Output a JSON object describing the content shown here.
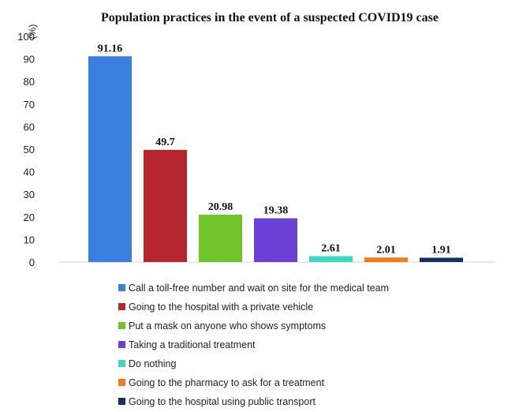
{
  "chart_data": {
    "type": "bar",
    "title": "Population practices in the event of a suspected COVID19 case",
    "ylabel": "(%)",
    "xlabel": "",
    "ylim": [
      0,
      100
    ],
    "yticks": [
      "0",
      "10",
      "20",
      "30",
      "40",
      "50",
      "60",
      "70",
      "80",
      "90",
      "100"
    ],
    "grid": false,
    "legend_position": "bottom",
    "categories": [
      "Call a toll-free number and wait on site for the medical team",
      "Going to the hospital with a private vehicle",
      "Put a mask on anyone who shows symptoms",
      "Taking a traditional treatment",
      "Do nothing",
      "Going to the pharmacy to ask for a treatment",
      "Going to the hospital using public transport"
    ],
    "values": [
      91.16,
      49.7,
      20.98,
      19.38,
      2.61,
      2.01,
      1.91
    ],
    "value_labels": [
      "91.16",
      "49.7",
      "20.98",
      "19.38",
      "2.61",
      "2.01",
      "1.91"
    ],
    "colors": [
      "#3a7fe0",
      "#b6262e",
      "#6ec42a",
      "#6a3fd4",
      "#3ed6bf",
      "#f07a22",
      "#14305e"
    ]
  }
}
